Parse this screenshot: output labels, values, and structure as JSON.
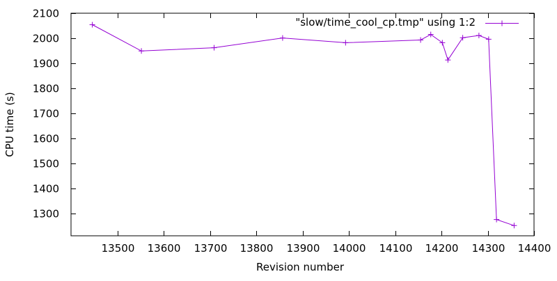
{
  "chart_data": {
    "type": "line",
    "title": "",
    "xlabel": "Revision number",
    "ylabel": "CPU time (s)",
    "xlim": [
      13400,
      14400
    ],
    "ylim": [
      1210,
      2100
    ],
    "x_ticks": [
      13500,
      13600,
      13700,
      13800,
      13900,
      14000,
      14100,
      14200,
      14300,
      14400
    ],
    "y_ticks": [
      1300,
      1400,
      1500,
      1600,
      1700,
      1800,
      1900,
      2000,
      2100
    ],
    "grid": false,
    "legend_position": "top-right",
    "series": [
      {
        "name": "\"slow/time_cool_cp.tmp\" using 1:2",
        "color": "#9400d3",
        "marker": "plus",
        "x": [
          13446,
          13552,
          13709,
          13857,
          13993,
          14155,
          14177,
          14202,
          14214,
          14246,
          14281,
          14302,
          14319,
          14357
        ],
        "y": [
          2054,
          1949,
          1962,
          2001,
          1982,
          1993,
          2015,
          1982,
          1913,
          2002,
          2011,
          1996,
          1275,
          1251
        ]
      }
    ]
  }
}
